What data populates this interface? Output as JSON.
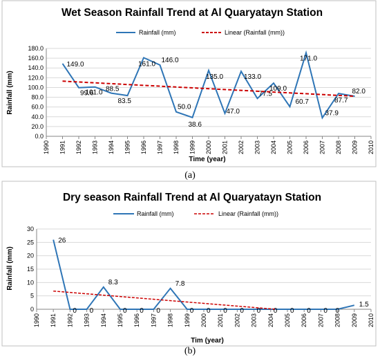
{
  "chart_data": [
    {
      "type": "line",
      "title": "Wet Season Rainfall Trend at Al Quaryatayn Station",
      "xlabel": "Time (year)",
      "ylabel": "Rainfall (mm)",
      "caption": "(a)",
      "legend": {
        "position": "top",
        "entries": [
          "Rainfall (mm)",
          "Linear (Rainfall (mm))"
        ]
      },
      "xlim": [
        1990,
        2010
      ],
      "ylim": [
        0,
        180
      ],
      "x_ticks": [
        "1990",
        "1991",
        "1992",
        "1993",
        "1994",
        "1995",
        "1996",
        "1997",
        "1998",
        "1999",
        "2000",
        "2001",
        "2002",
        "2003",
        "2004",
        "2005",
        "2006",
        "2007",
        "2008",
        "2009",
        "2010"
      ],
      "y_ticks": [
        "0.0",
        "20.0",
        "40.0",
        "60.0",
        "80.0",
        "100.0",
        "120.0",
        "140.0",
        "160.0",
        "180.0"
      ],
      "series": [
        {
          "name": "Rainfall (mm)",
          "color": "#2e75b6",
          "x": [
            1991,
            1992,
            1993,
            1994,
            1995,
            1996,
            1997,
            1998,
            1999,
            2000,
            2001,
            2002,
            2003,
            2004,
            2005,
            2006,
            2007,
            2008,
            2009
          ],
          "values": [
            149.0,
            99.6,
            101.0,
            88.5,
            83.5,
            161.0,
            146.0,
            50.0,
            38.6,
            135.0,
            47.0,
            133.0,
            77.5,
            109.0,
            60.7,
            171.0,
            37.9,
            87.7,
            82.0
          ],
          "labels": [
            "149.0",
            "99.6",
            "101.0",
            "88.5",
            "83.5",
            "161.0",
            "146.0",
            "50.0",
            "38.6",
            "135.0",
            "47.0",
            "133.0",
            "77.5",
            "109.0",
            "60.7",
            "171.0",
            "37.9",
            "87.7",
            "82.0"
          ]
        },
        {
          "name": "Linear (Rainfall (mm))",
          "color": "#cc0000",
          "style": "dashed",
          "x": [
            1991,
            2009
          ],
          "values": [
            113,
            82
          ]
        }
      ]
    },
    {
      "type": "line",
      "title": "Dry season Rainfall Trend at Al Quaryatayn Station",
      "xlabel": "Tim (year)",
      "ylabel": "Rainfall (mm)",
      "caption": "(b)",
      "legend": {
        "position": "top",
        "entries": [
          "Rainfall (mm)",
          "Linear (Rainfall (mm))"
        ]
      },
      "xlim": [
        1990,
        2010
      ],
      "ylim": [
        0,
        30
      ],
      "x_ticks": [
        "1990",
        "1991",
        "1992",
        "1993",
        "1994",
        "1995",
        "1996",
        "1997",
        "1998",
        "1999",
        "2000",
        "2001",
        "2002",
        "2003",
        "2004",
        "2005",
        "2006",
        "2007",
        "2008",
        "2009",
        "2010"
      ],
      "y_ticks": [
        "0",
        "5",
        "10",
        "15",
        "20",
        "25",
        "30"
      ],
      "series": [
        {
          "name": "Rainfall (mm)",
          "color": "#2e75b6",
          "x": [
            1991,
            1992,
            1993,
            1994,
            1995,
            1996,
            1997,
            1998,
            1999,
            2000,
            2001,
            2002,
            2003,
            2004,
            2005,
            2006,
            2007,
            2008,
            2009
          ],
          "values": [
            26,
            0,
            0,
            8.3,
            0,
            0,
            0,
            7.8,
            0,
            0,
            0,
            0,
            0,
            0,
            0,
            0,
            0,
            0,
            1.5
          ],
          "labels": [
            "26",
            "0",
            "0",
            "8.3",
            "0",
            "0",
            "0",
            "7.8",
            "0",
            "0",
            "0",
            "0",
            "0",
            "0",
            "0",
            "0",
            "0",
            "0",
            "1.5"
          ]
        },
        {
          "name": "Linear (Rainfall (mm))",
          "color": "#cc0000",
          "style": "dashed",
          "x": [
            1991,
            2004.3
          ],
          "values": [
            6.8,
            0
          ]
        }
      ]
    }
  ]
}
